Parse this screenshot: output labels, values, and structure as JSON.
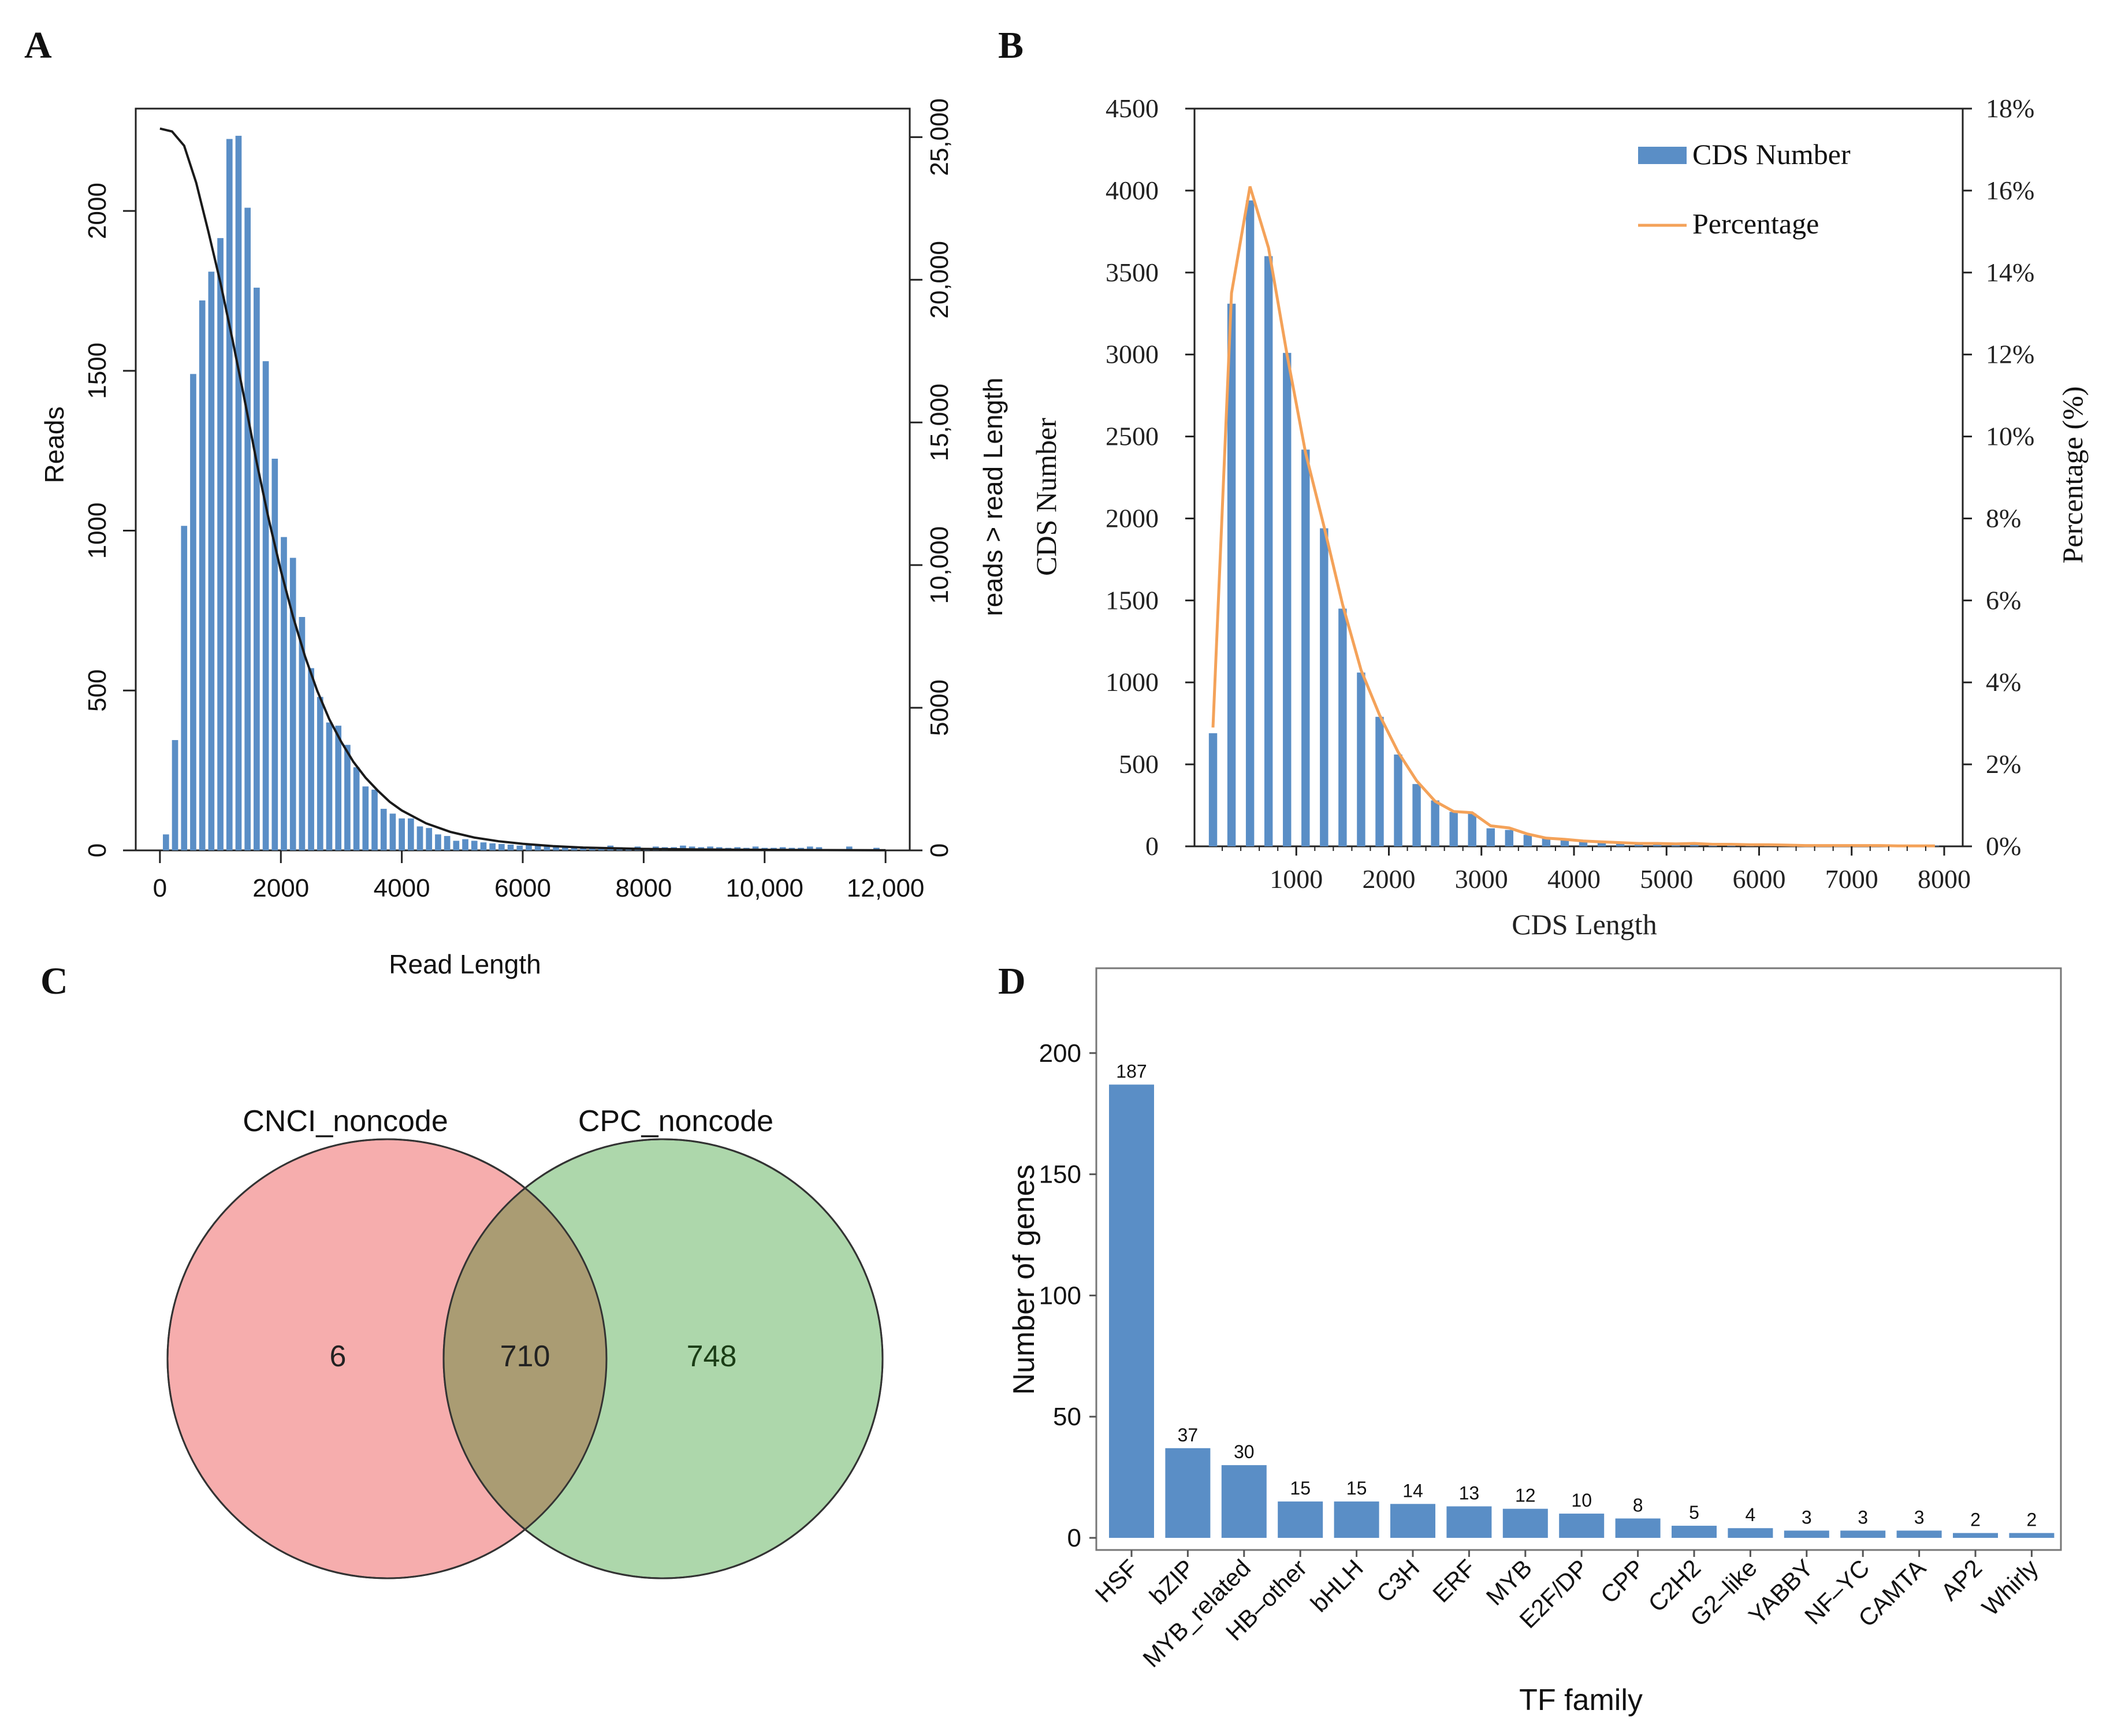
{
  "panel_letters": [
    "A",
    "B",
    "C",
    "D"
  ],
  "colors": {
    "bar": "#5a8ec6",
    "bar_stroke": "#4a7fbd",
    "curve_black": "#1a1a1a",
    "percentage_line": "#f4a259",
    "venn_left": "#f6a9a9",
    "venn_right": "#a9d5a6",
    "venn_overlap": "#aa9c73",
    "axis": "#222222"
  },
  "chart_data": [
    {
      "panel": "A",
      "type": "bar",
      "title": "",
      "xlabel": "Read Length",
      "ylabel": "Reads",
      "y2label": "reads > read Length",
      "xlim": [
        -400,
        12400
      ],
      "ylim": [
        0,
        2320
      ],
      "y2lim": [
        0,
        26000
      ],
      "x_ticks": [
        0,
        2000,
        4000,
        6000,
        8000,
        10000,
        12000
      ],
      "x_tick_labels": [
        "0",
        "2000",
        "4000",
        "6000",
        "8000",
        "10,000",
        "12,000"
      ],
      "y_ticks": [
        0,
        500,
        1000,
        1500,
        2000
      ],
      "y_tick_labels": [
        "0",
        "500",
        "1000",
        "1500",
        "2000"
      ],
      "y2_ticks": [
        0,
        5000,
        10000,
        15000,
        20000,
        25000
      ],
      "y2_tick_labels": [
        "0",
        "5000",
        "10,000",
        "15,000",
        "20,000",
        "25,000"
      ],
      "bin_width": 150,
      "x": [
        100,
        250,
        400,
        550,
        700,
        850,
        1000,
        1150,
        1300,
        1450,
        1600,
        1750,
        1900,
        2050,
        2200,
        2350,
        2500,
        2650,
        2800,
        2950,
        3100,
        3250,
        3400,
        3550,
        3700,
        3850,
        4000,
        4150,
        4300,
        4450,
        4600,
        4750,
        4900,
        5050,
        5200,
        5350,
        5500,
        5650,
        5800,
        5950,
        6100,
        6250,
        6400,
        6550,
        6700,
        6850,
        7000,
        7150,
        7300,
        7450,
        7600,
        7750,
        7900,
        8050,
        8200,
        8350,
        8500,
        8650,
        8800,
        8950,
        9100,
        9250,
        9400,
        9550,
        9700,
        9850,
        10000,
        10150,
        10300,
        10450,
        10600,
        10750,
        10900,
        11400,
        11850
      ],
      "values": [
        50,
        345,
        1015,
        1490,
        1720,
        1810,
        1915,
        2225,
        2235,
        2010,
        1760,
        1530,
        1225,
        980,
        915,
        730,
        570,
        480,
        400,
        390,
        330,
        260,
        200,
        190,
        130,
        115,
        100,
        100,
        75,
        70,
        50,
        45,
        30,
        35,
        30,
        25,
        22,
        20,
        18,
        15,
        18,
        15,
        12,
        12,
        10,
        10,
        10,
        8,
        8,
        15,
        10,
        8,
        12,
        8,
        12,
        10,
        10,
        15,
        12,
        10,
        12,
        10,
        8,
        10,
        8,
        12,
        8,
        8,
        10,
        8,
        8,
        12,
        10,
        12,
        8
      ],
      "curve_y2": {
        "x": [
          0,
          200,
          400,
          600,
          800,
          1000,
          1200,
          1400,
          1600,
          1800,
          2000,
          2200,
          2400,
          2600,
          2800,
          3000,
          3200,
          3400,
          3600,
          3800,
          4000,
          4400,
          4800,
          5200,
          5600,
          6000,
          6500,
          7000,
          8000,
          9000,
          10000,
          11000,
          12000
        ],
        "values": [
          25300,
          25200,
          24700,
          23400,
          21700,
          19900,
          17900,
          15800,
          13600,
          11600,
          9800,
          8200,
          6800,
          5600,
          4600,
          3800,
          3100,
          2550,
          2100,
          1700,
          1400,
          950,
          650,
          450,
          320,
          230,
          150,
          100,
          50,
          30,
          20,
          10,
          5
        ]
      }
    },
    {
      "panel": "B",
      "type": "bar",
      "title": "",
      "xlabel": "CDS Length",
      "ylabel": "CDS Number",
      "y2label": "Percentage (%)",
      "xlim": [
        -100,
        8200
      ],
      "ylim": [
        0,
        4500
      ],
      "y2lim": [
        0,
        18
      ],
      "x_ticks": [
        1000,
        2000,
        3000,
        4000,
        5000,
        6000,
        7000,
        8000
      ],
      "x_tick_labels": [
        "1000",
        "2000",
        "3000",
        "4000",
        "5000",
        "6000",
        "7000",
        "8000"
      ],
      "y_ticks": [
        0,
        500,
        1000,
        1500,
        2000,
        2500,
        3000,
        3500,
        4000,
        4500
      ],
      "y_tick_labels": [
        "0",
        "500",
        "1000",
        "1500",
        "2000",
        "2500",
        "3000",
        "3500",
        "4000",
        "4500"
      ],
      "y2_ticks": [
        0,
        2,
        4,
        6,
        8,
        10,
        12,
        14,
        16,
        18
      ],
      "y2_tick_labels": [
        "0%",
        "2%",
        "4%",
        "6%",
        "8%",
        "10%",
        "12%",
        "14%",
        "16%",
        "18%"
      ],
      "legend": [
        "CDS Number",
        "Percentage"
      ],
      "legend_position": "top-right",
      "series": [
        {
          "name": "CDS Number",
          "x": [
            100,
            300,
            500,
            700,
            900,
            1100,
            1300,
            1500,
            1700,
            1900,
            2100,
            2300,
            2500,
            2700,
            2900,
            3100,
            3300,
            3500,
            3700,
            3900,
            4100,
            4300,
            4500,
            4700,
            4900,
            5100,
            5300,
            5500,
            5700,
            5900,
            6100,
            6300,
            6500,
            6700,
            6900,
            7100,
            7300,
            7500,
            7700,
            7900
          ],
          "values": [
            690,
            3310,
            3940,
            3600,
            3010,
            2420,
            1940,
            1450,
            1060,
            790,
            560,
            380,
            280,
            210,
            200,
            110,
            100,
            70,
            50,
            40,
            30,
            25,
            20,
            15,
            15,
            12,
            15,
            10,
            10,
            8,
            8,
            6,
            5,
            5,
            5,
            4,
            4,
            3,
            3,
            3
          ]
        },
        {
          "name": "Percentage",
          "x": [
            100,
            300,
            500,
            700,
            900,
            1100,
            1300,
            1500,
            1700,
            1900,
            2100,
            2300,
            2500,
            2700,
            2900,
            3100,
            3300,
            3500,
            3700,
            3900,
            4100,
            4300,
            4500,
            4700,
            4900,
            5100,
            5300,
            5500,
            5700,
            5900,
            6100,
            6300,
            6500,
            6700,
            6900,
            7100,
            7300,
            7500,
            7700,
            7900
          ],
          "values": [
            2.9,
            13.5,
            16.1,
            14.6,
            12.0,
            9.6,
            7.8,
            5.9,
            4.3,
            3.2,
            2.3,
            1.6,
            1.1,
            0.85,
            0.82,
            0.5,
            0.45,
            0.3,
            0.2,
            0.17,
            0.13,
            0.11,
            0.09,
            0.07,
            0.07,
            0.06,
            0.07,
            0.05,
            0.05,
            0.04,
            0.04,
            0.03,
            0.02,
            0.02,
            0.02,
            0.02,
            0.02,
            0.01,
            0.01,
            0.01
          ]
        }
      ]
    },
    {
      "panel": "C",
      "type": "venn",
      "sets": [
        "CNCI_noncode",
        "CPC_noncode"
      ],
      "only_left": "6",
      "overlap": "710",
      "only_right": "748"
    },
    {
      "panel": "D",
      "type": "bar",
      "title": "",
      "xlabel": "TF family",
      "ylabel": "Number of genes",
      "ylim": [
        -5,
        235
      ],
      "y_ticks": [
        0,
        50,
        100,
        150,
        200
      ],
      "y_tick_labels": [
        "0",
        "50",
        "100",
        "150",
        "200"
      ],
      "categories": [
        "HSF",
        "bZIP",
        "MYB_related",
        "HB–other",
        "bHLH",
        "C3H",
        "ERF",
        "MYB",
        "E2F/DP",
        "CPP",
        "C2H2",
        "G2–like",
        "YABBY",
        "NF–YC",
        "CAMTA",
        "AP2",
        "Whirly"
      ],
      "values": [
        187,
        37,
        30,
        15,
        15,
        14,
        13,
        12,
        10,
        8,
        5,
        4,
        3,
        3,
        3,
        2,
        2
      ]
    }
  ]
}
